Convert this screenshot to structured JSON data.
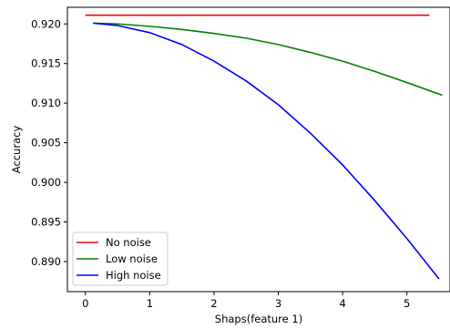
{
  "chart_data": {
    "type": "line",
    "title": "",
    "xlabel": "Shaps(feature 1)",
    "ylabel": "Accuracy",
    "xlim": [
      -0.28,
      5.67
    ],
    "ylim": [
      0.8862,
      0.9221
    ],
    "xticks": [
      "0",
      "1",
      "2",
      "3",
      "4",
      "5"
    ],
    "yticks": [
      "0.890",
      "0.895",
      "0.900",
      "0.905",
      "0.910",
      "0.915",
      "0.920"
    ],
    "grid": false,
    "legend": "lower-left",
    "series": [
      {
        "name": "No noise",
        "color": "#ff0000",
        "x": [
          0.0,
          5.35
        ],
        "y": [
          0.9211,
          0.9211
        ]
      },
      {
        "name": "Low noise",
        "color": "#008000",
        "x": [
          0.12,
          0.5,
          1.0,
          1.5,
          2.0,
          2.5,
          3.0,
          3.5,
          4.0,
          4.5,
          5.0,
          5.55
        ],
        "y": [
          0.9201,
          0.92,
          0.9197,
          0.9193,
          0.9188,
          0.9182,
          0.9174,
          0.9164,
          0.9153,
          0.914,
          0.9126,
          0.911
        ]
      },
      {
        "name": "High noise",
        "color": "#0000ff",
        "x": [
          0.12,
          0.5,
          1.0,
          1.5,
          2.0,
          2.5,
          3.0,
          3.5,
          4.0,
          4.5,
          5.0,
          5.5
        ],
        "y": [
          0.9201,
          0.9198,
          0.9189,
          0.9174,
          0.9153,
          0.9128,
          0.9098,
          0.9062,
          0.9022,
          0.8977,
          0.8929,
          0.8878
        ]
      }
    ]
  }
}
